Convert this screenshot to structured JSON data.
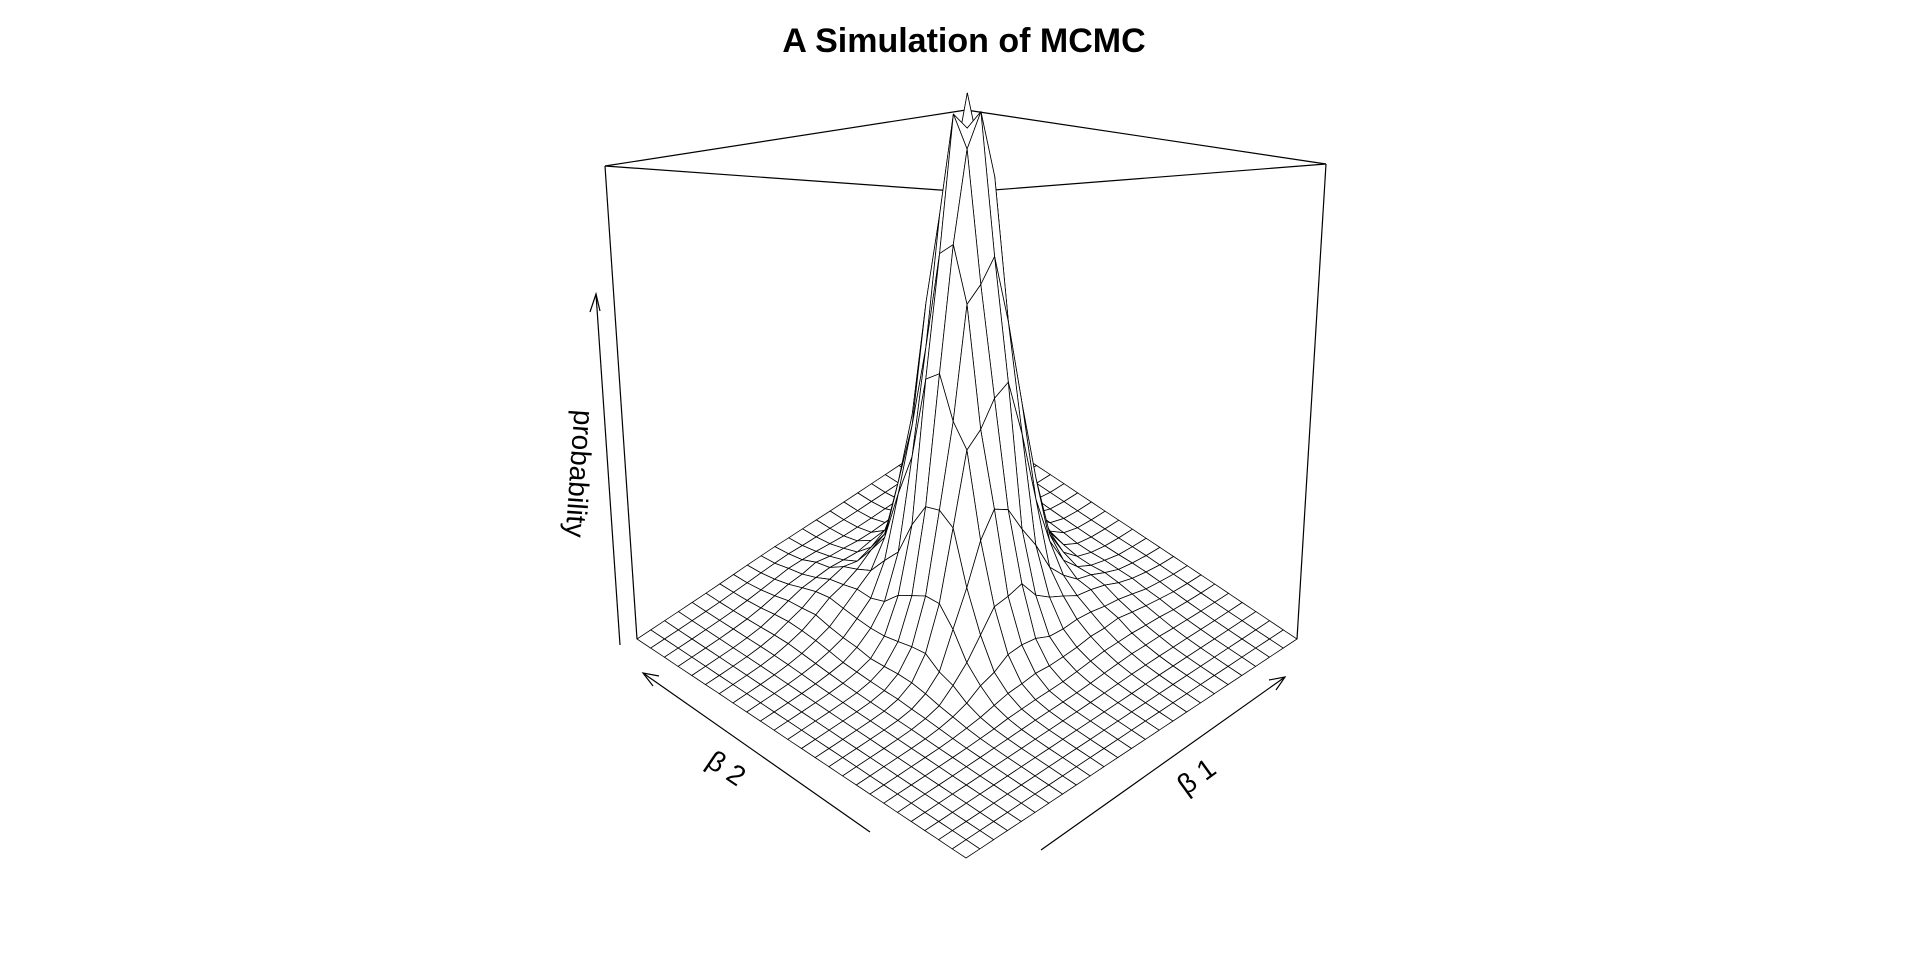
{
  "chart_data": {
    "type": "surface",
    "title": "A Simulation of MCMC",
    "xlabel": "β 1",
    "ylabel": "β 2",
    "zlabel": "probability",
    "axes_ticks": false,
    "grid_size": [
      25,
      25
    ],
    "surface": {
      "description": "empirical bivariate density of two MCMC parameters, unimodal peak near centre",
      "peak_center": [
        0.5,
        0.5
      ],
      "z_range": [
        0,
        1
      ]
    }
  }
}
